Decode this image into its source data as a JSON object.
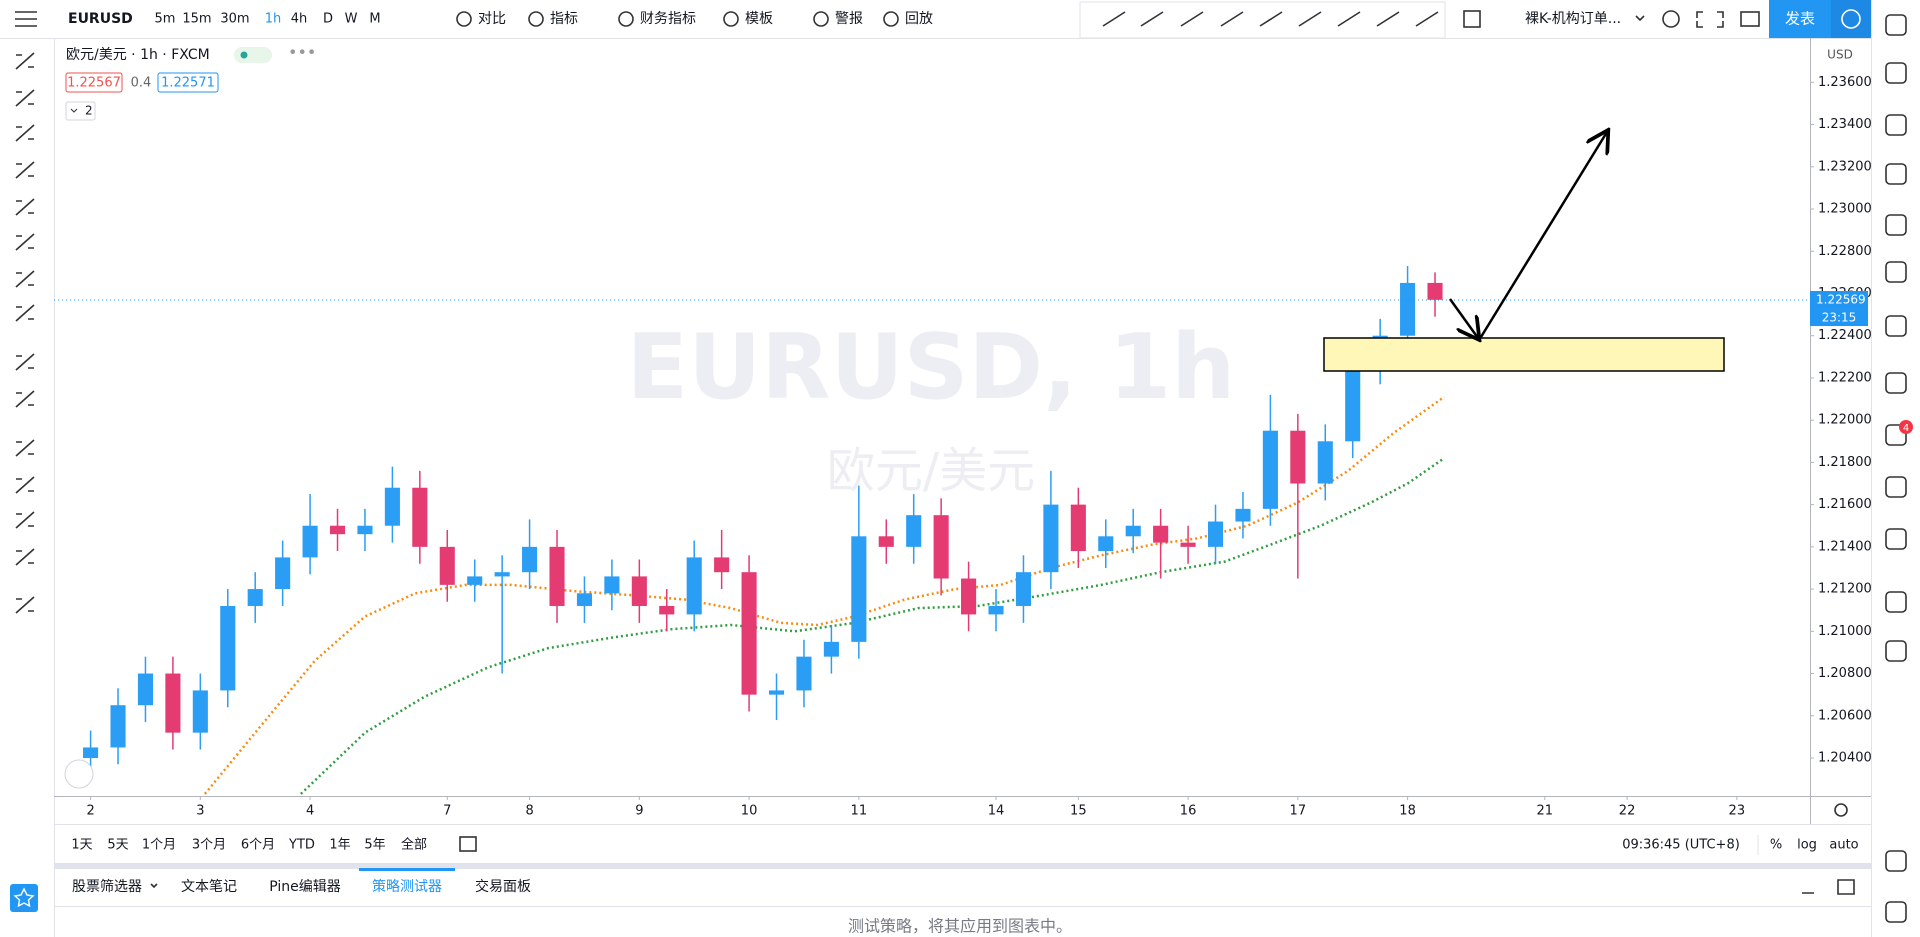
{
  "toolbar": {
    "symbol": "EURUSD",
    "intervals": [
      "5m",
      "15m",
      "30m",
      "1h",
      "4h",
      "D",
      "W",
      "M"
    ],
    "buttons": [
      "对比",
      "指标",
      "财务指标",
      "模板",
      "警报",
      "回放"
    ],
    "layout_name": "裸K-机构订单...",
    "publish": "发表"
  },
  "legend": {
    "title": "欧元/美元 · 1h · FXCM",
    "bid": 1.22567,
    "spread": 0.4,
    "ask": 1.22571,
    "collapsed_count": "2"
  },
  "watermark": {
    "symbol": "EURUSD, 1h",
    "description": "欧元/美元"
  },
  "sidebar": {
    "badge": "4"
  },
  "chart_data": {
    "type": "candlestick",
    "currency": "USD",
    "up_color": "#2a9df4",
    "down_color": "#e33b72",
    "grid": false,
    "x": [
      0,
      6,
      12,
      18,
      24,
      30,
      36,
      42,
      48,
      54,
      60,
      66,
      72,
      78,
      84,
      90,
      96,
      102,
      108,
      114,
      120,
      126,
      132,
      138,
      144,
      150,
      156,
      162,
      168,
      174,
      180,
      186,
      192,
      198,
      204,
      210,
      216,
      222,
      228,
      234,
      240,
      246,
      252,
      258,
      264,
      270,
      276,
      282,
      288,
      294
    ],
    "open": [
      1.204,
      1.2045,
      1.2065,
      1.208,
      1.2052,
      1.2072,
      1.2112,
      1.212,
      1.2135,
      1.215,
      1.2146,
      1.215,
      1.2168,
      1.214,
      1.2122,
      1.2126,
      1.2128,
      1.214,
      1.2112,
      1.2118,
      1.2126,
      1.2112,
      1.2108,
      1.2135,
      1.2128,
      1.207,
      1.2072,
      1.2088,
      1.2095,
      1.2145,
      1.214,
      1.2155,
      1.2125,
      1.2108,
      1.2112,
      1.2128,
      1.216,
      1.2138,
      1.2145,
      1.215,
      1.2142,
      1.214,
      1.2152,
      1.2158,
      1.2195,
      1.217,
      1.219,
      1.2225,
      1.224,
      1.2265
    ],
    "high": [
      1.2053,
      1.2073,
      1.2088,
      1.2088,
      1.208,
      1.212,
      1.2128,
      1.2143,
      1.2165,
      1.2158,
      1.2158,
      1.2178,
      1.2176,
      1.2148,
      1.2134,
      1.2136,
      1.2153,
      1.2148,
      1.2126,
      1.2134,
      1.2134,
      1.212,
      1.2143,
      1.2148,
      1.2136,
      1.208,
      1.2096,
      1.2103,
      1.2169,
      1.2153,
      1.2165,
      1.2163,
      1.2133,
      1.212,
      1.2136,
      1.2176,
      1.2168,
      1.2153,
      1.2158,
      1.2158,
      1.215,
      1.216,
      1.2166,
      1.2212,
      1.2203,
      1.2198,
      1.2233,
      1.2248,
      1.2273,
      1.227
    ],
    "low": [
      1.203,
      1.2037,
      1.2057,
      1.2044,
      1.2044,
      1.2064,
      1.2104,
      1.2112,
      1.2127,
      1.2138,
      1.2138,
      1.2142,
      1.2132,
      1.2114,
      1.2114,
      1.208,
      1.212,
      1.2104,
      1.2104,
      1.211,
      1.2104,
      1.21,
      1.21,
      1.212,
      1.2062,
      1.2058,
      1.2064,
      1.208,
      1.2087,
      1.2132,
      1.2132,
      1.2117,
      1.21,
      1.21,
      1.2104,
      1.212,
      1.213,
      1.213,
      1.2137,
      1.2125,
      1.2132,
      1.2132,
      1.2144,
      1.215,
      1.2125,
      1.2162,
      1.2182,
      1.2217,
      1.2232,
      1.2249
    ],
    "close": [
      1.2045,
      1.2065,
      1.208,
      1.2052,
      1.2072,
      1.2112,
      1.212,
      1.2135,
      1.215,
      1.2146,
      1.215,
      1.2168,
      1.214,
      1.2122,
      1.2126,
      1.2128,
      1.214,
      1.2112,
      1.2118,
      1.2126,
      1.2112,
      1.2108,
      1.2135,
      1.2128,
      1.207,
      1.2072,
      1.2088,
      1.2095,
      1.2145,
      1.214,
      1.2155,
      1.2125,
      1.2108,
      1.2112,
      1.2128,
      1.216,
      1.2138,
      1.2145,
      1.215,
      1.2142,
      1.214,
      1.2152,
      1.2158,
      1.2195,
      1.217,
      1.219,
      1.2225,
      1.224,
      1.2265,
      1.2257
    ],
    "moving_averages": [
      {
        "color": "#f68d12",
        "x": [
          25,
          36,
          49,
          60,
          71,
          82,
          92,
          106,
          119,
          130,
          140,
          151,
          159,
          167,
          178,
          189,
          199,
          210,
          221,
          232,
          242,
          253,
          264,
          275,
          285,
          296
        ],
        "values": [
          1.2023,
          1.2052,
          1.2086,
          1.2107,
          1.2118,
          1.2122,
          1.2122,
          1.2119,
          1.2117,
          1.2115,
          1.2111,
          1.2104,
          1.2103,
          1.2107,
          1.2115,
          1.212,
          1.2122,
          1.213,
          1.2136,
          1.2141,
          1.2144,
          1.215,
          1.2161,
          1.2176,
          1.2194,
          1.2211
        ]
      },
      {
        "color": "#2e9e3e",
        "x": [
          46,
          60,
          73,
          87,
          100,
          114,
          127,
          140,
          154,
          167,
          181,
          194,
          208,
          221,
          234,
          248,
          258,
          269,
          280,
          288,
          296
        ],
        "values": [
          1.2023,
          1.2052,
          1.2069,
          1.2083,
          1.2092,
          1.2097,
          1.2101,
          1.2103,
          1.21,
          1.2104,
          1.2111,
          1.2112,
          1.2117,
          1.2122,
          1.2128,
          1.2133,
          1.2141,
          1.215,
          1.2161,
          1.217,
          1.2182
        ]
      }
    ],
    "xlim": [
      -8,
      376
    ],
    "xticks": [
      {
        "value": 0,
        "label": "2"
      },
      {
        "value": 24,
        "label": "3"
      },
      {
        "value": 48,
        "label": "4"
      },
      {
        "value": 78,
        "label": "7"
      },
      {
        "value": 96,
        "label": "8"
      },
      {
        "value": 120,
        "label": "9"
      },
      {
        "value": 144,
        "label": "10"
      },
      {
        "value": 168,
        "label": "11"
      },
      {
        "value": 198,
        "label": "14"
      },
      {
        "value": 216,
        "label": "15"
      },
      {
        "value": 240,
        "label": "16"
      },
      {
        "value": 264,
        "label": "17"
      },
      {
        "value": 288,
        "label": "18"
      },
      {
        "value": 318,
        "label": "21"
      },
      {
        "value": 336,
        "label": "22"
      },
      {
        "value": 360,
        "label": "23"
      }
    ],
    "ylim": [
      1.2022,
      1.2381
    ],
    "yticks": [
      {
        "value": 1.204,
        "label": "1.20400"
      },
      {
        "value": 1.206,
        "label": "1.20600"
      },
      {
        "value": 1.208,
        "label": "1.20800"
      },
      {
        "value": 1.21,
        "label": "1.21000"
      },
      {
        "value": 1.212,
        "label": "1.21200"
      },
      {
        "value": 1.214,
        "label": "1.21400"
      },
      {
        "value": 1.216,
        "label": "1.21600"
      },
      {
        "value": 1.218,
        "label": "1.21800"
      },
      {
        "value": 1.22,
        "label": "1.22000"
      },
      {
        "value": 1.222,
        "label": "1.22200"
      },
      {
        "value": 1.224,
        "label": "1.22400"
      },
      {
        "value": 1.226,
        "label": "1.22600"
      },
      {
        "value": 1.228,
        "label": "1.22800"
      },
      {
        "value": 1.23,
        "label": "1.23000"
      },
      {
        "value": 1.232,
        "label": "1.23200"
      },
      {
        "value": 1.234,
        "label": "1.23400"
      },
      {
        "value": 1.236,
        "label": "1.23600"
      }
    ],
    "last_price": 1.22569,
    "countdown": "23:15"
  },
  "range_bar": {
    "ranges": [
      "1天",
      "5天",
      "1个月",
      "3个月",
      "6个月",
      "YTD",
      "1年",
      "5年",
      "全部"
    ],
    "clock": "09:36:45 (UTC+8)",
    "options": [
      "%",
      "log",
      "auto"
    ]
  },
  "bottom_panel": {
    "tabs": [
      "股票筛选器",
      "文本笔记",
      "Pine编辑器",
      "策略测试器",
      "交易面板"
    ],
    "message": "测试策略，将其应用到图表中。"
  }
}
